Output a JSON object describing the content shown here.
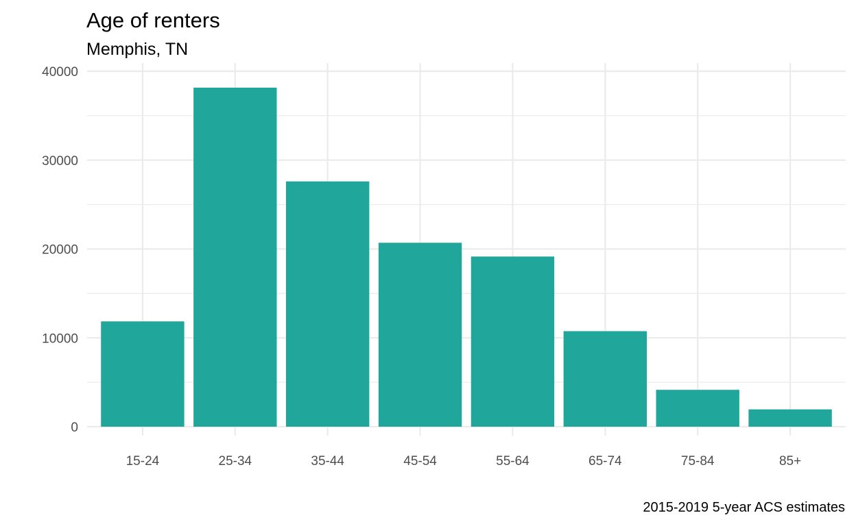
{
  "chart_data": {
    "type": "bar",
    "title": "Age of renters",
    "subtitle": "Memphis, TN",
    "caption": "2015-2019 5-year ACS estimates",
    "xlabel": "",
    "ylabel": "",
    "categories": [
      "15-24",
      "25-34",
      "35-44",
      "45-54",
      "55-64",
      "65-74",
      "75-84",
      "85+"
    ],
    "values": [
      11850,
      38150,
      27600,
      20700,
      19150,
      10750,
      4150,
      1950
    ],
    "ylim": [
      0,
      40000
    ],
    "yticks": [
      0,
      10000,
      20000,
      30000,
      40000
    ],
    "ytick_labels": [
      "0",
      "10000",
      "20000",
      "30000",
      "40000"
    ],
    "bar_color": "#21A69B",
    "grid_color": "#EBEBEB",
    "grid": true,
    "legend": "none"
  }
}
